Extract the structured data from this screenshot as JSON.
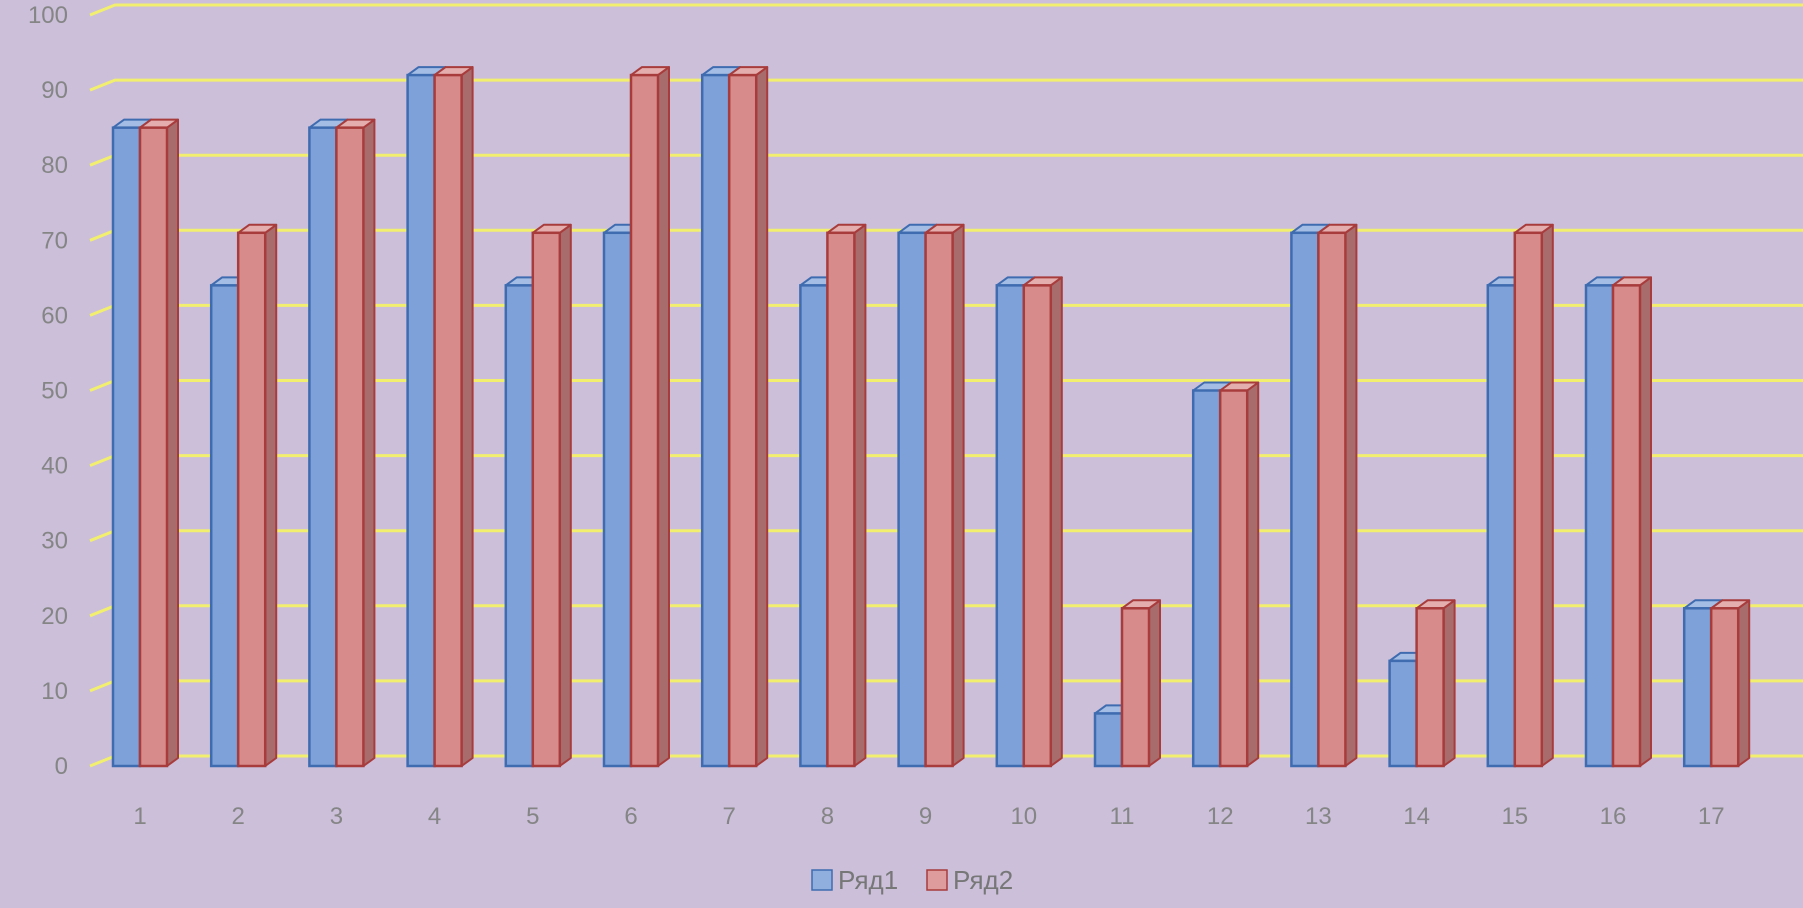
{
  "chart_data": {
    "type": "bar",
    "title": "",
    "xlabel": "",
    "ylabel": "",
    "ylim": [
      0,
      100
    ],
    "yticks": [
      0,
      10,
      20,
      30,
      40,
      50,
      60,
      70,
      80,
      90,
      100
    ],
    "grid": true,
    "style": "3d-clustered-column",
    "legend_position": "bottom",
    "categories": [
      "1",
      "2",
      "3",
      "4",
      "5",
      "6",
      "7",
      "8",
      "9",
      "10",
      "11",
      "12",
      "13",
      "14",
      "15",
      "16",
      "17"
    ],
    "series": [
      {
        "name": "Ряд1",
        "color": "#7da1d8",
        "values": [
          85,
          64,
          85,
          92,
          64,
          71,
          92,
          64,
          71,
          64,
          7,
          50,
          71,
          14,
          64,
          64,
          21
        ]
      },
      {
        "name": "Ряд2",
        "color": "#d88b8b",
        "values": [
          85,
          71,
          85,
          92,
          71,
          92,
          92,
          71,
          71,
          64,
          21,
          50,
          71,
          21,
          71,
          64,
          21
        ]
      }
    ]
  },
  "colors": {
    "background": "#cbbfda",
    "gridline": "#f2ef6e",
    "axis_text": "#858585",
    "series1_edge": "#3f6cb0",
    "series2_edge": "#a83c3c"
  }
}
